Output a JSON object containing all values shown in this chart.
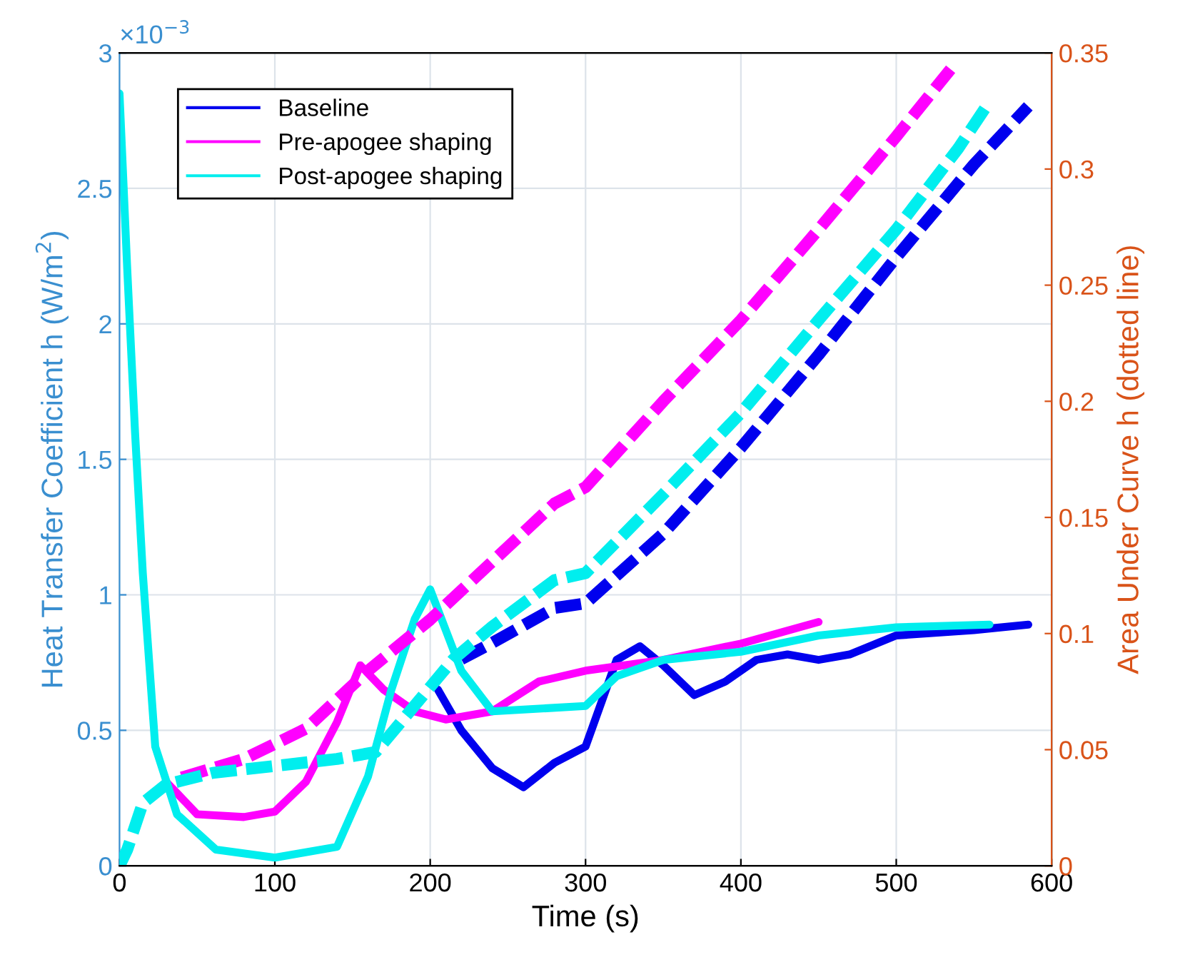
{
  "chart_data": {
    "type": "line",
    "xlabel": "Time (s)",
    "ylabel": "Heat Transfer Coefficient h (W/m$^{2}$)",
    "y2label": "Area Under Curve h (dotted line)",
    "annotations": [
      "×10$^{−3}$"
    ],
    "xlim": [
      0,
      600
    ],
    "xticks": [
      0,
      100,
      200,
      300,
      400,
      500,
      600
    ],
    "ylim": [
      0,
      3
    ],
    "yticks": [
      0,
      0.5,
      1,
      1.5,
      2,
      2.5,
      3
    ],
    "y2lim": [
      0,
      0.35
    ],
    "y2ticks": [
      0,
      0.05,
      0.1,
      0.15,
      0.2,
      0.25,
      0.3,
      0.35
    ],
    "grid": true,
    "legend": "top left",
    "series": [
      {
        "name": "Baseline",
        "color": "#0000ee",
        "line_style": "solid",
        "x": [
          205,
          220,
          240,
          260,
          280,
          300,
          320,
          335,
          350,
          370,
          390,
          410,
          430,
          450,
          470,
          500,
          550,
          585
        ],
        "values": [
          0.65,
          0.5,
          0.36,
          0.29,
          0.38,
          0.44,
          0.76,
          0.81,
          0.74,
          0.63,
          0.68,
          0.76,
          0.78,
          0.76,
          0.78,
          0.85,
          0.87,
          0.89
        ]
      },
      {
        "name": "Pre-apogee shaping",
        "color": "#ff00ff",
        "line_style": "solid",
        "x": [
          30,
          50,
          80,
          100,
          120,
          140,
          155,
          170,
          190,
          210,
          240,
          270,
          300,
          350,
          400,
          450
        ],
        "values": [
          0.31,
          0.19,
          0.18,
          0.2,
          0.31,
          0.53,
          0.74,
          0.65,
          0.57,
          0.54,
          0.57,
          0.68,
          0.72,
          0.76,
          0.82,
          0.9
        ]
      },
      {
        "name": "Post-apogee shaping",
        "color": "#00eeee",
        "line_style": "solid",
        "x": [
          0,
          5,
          10,
          15,
          23,
          37,
          62,
          100,
          140,
          160,
          175,
          190,
          200,
          210,
          220,
          240,
          300,
          320,
          350,
          400,
          450,
          500,
          560
        ],
        "values": [
          2.85,
          2.2,
          1.6,
          1.08,
          0.44,
          0.19,
          0.06,
          0.03,
          0.07,
          0.33,
          0.65,
          0.91,
          1.02,
          0.87,
          0.72,
          0.57,
          0.59,
          0.7,
          0.76,
          0.79,
          0.85,
          0.88,
          0.89
        ]
      },
      {
        "color": "#0000ee",
        "axis": "y2",
        "line_style": "dashed",
        "x": [
          220,
          240,
          280,
          300,
          350,
          400,
          450,
          500,
          550,
          585
        ],
        "values": [
          0.089,
          0.096,
          0.111,
          0.113,
          0.143,
          0.18,
          0.22,
          0.262,
          0.302,
          0.327
        ]
      },
      {
        "color": "#ff00ff",
        "axis": "y2",
        "line_style": "dashed",
        "x": [
          40,
          80,
          120,
          160,
          200,
          240,
          280,
          300,
          350,
          400,
          450,
          500,
          535
        ],
        "values": [
          0.038,
          0.046,
          0.059,
          0.084,
          0.106,
          0.131,
          0.156,
          0.163,
          0.2,
          0.235,
          0.274,
          0.314,
          0.343
        ]
      },
      {
        "color": "#00eeee",
        "axis": "y2",
        "line_style": "dashed",
        "x": [
          0,
          5,
          15,
          30,
          60,
          100,
          140,
          165,
          215,
          240,
          280,
          300,
          350,
          400,
          450,
          500,
          540,
          560
        ],
        "values": [
          0,
          0.007,
          0.027,
          0.035,
          0.04,
          0.043,
          0.046,
          0.049,
          0.089,
          0.103,
          0.123,
          0.126,
          0.16,
          0.195,
          0.235,
          0.274,
          0.309,
          0.329
        ]
      }
    ]
  }
}
